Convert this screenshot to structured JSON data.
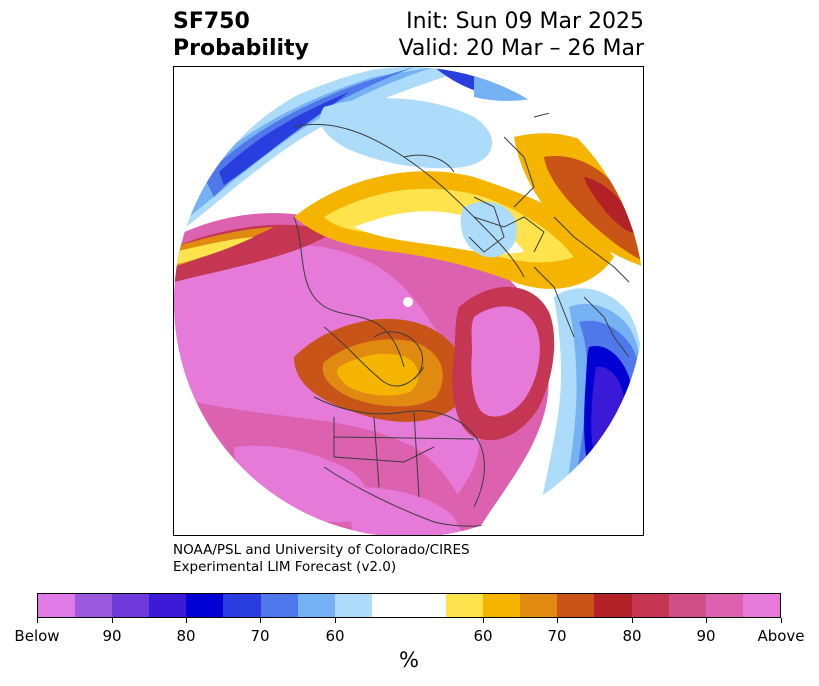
{
  "header": {
    "variable": "SF750",
    "product": "Probability",
    "init": "Init: Sun 09 Mar 2025",
    "valid": "Valid: 20 Mar – 26 Mar"
  },
  "credit": {
    "line1": "NOAA/PSL and University of Colorado/CIRES",
    "line2": "Experimental LIM Forecast (v2.0)"
  },
  "colorbar": {
    "unit": "%",
    "colors": [
      "#e07ae6",
      "#9b59e0",
      "#7039d9",
      "#3a1ad6",
      "#0000d2",
      "#2a3ee0",
      "#4f78eb",
      "#75b2f4",
      "#acdcfa",
      "#ffffff",
      "#ffffff",
      "#fee34c",
      "#f4b400",
      "#e08a12",
      "#c85418",
      "#b22126",
      "#c43651",
      "#cf4f86",
      "#dc62b0",
      "#e57ad9"
    ],
    "tick_labels": [
      "Below",
      "90",
      "80",
      "70",
      "60",
      "60",
      "70",
      "80",
      "90",
      "Above"
    ]
  }
}
